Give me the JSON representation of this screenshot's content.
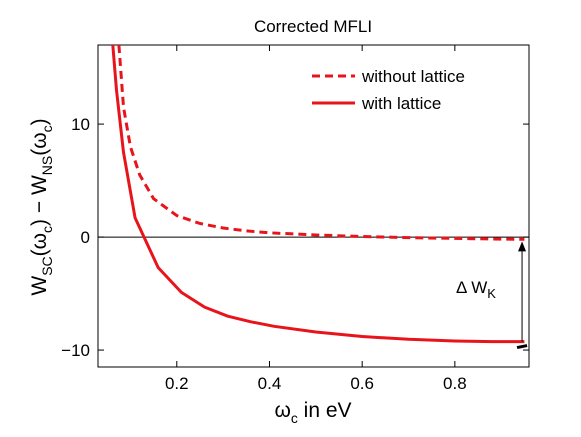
{
  "chart_data": {
    "type": "line",
    "title": "Corrected MFLI",
    "xlabel_parts": {
      "base": "ω",
      "sub": "c",
      "rest": " in eV"
    },
    "ylabel_parts": {
      "w1": "W",
      "s1": "SC",
      "a1": "(ω",
      "s2": "c",
      "a2": ") − W",
      "s3": "NS",
      "a3": "(ω",
      "s4": "c",
      "a4": ")"
    },
    "xlim": [
      0.03,
      0.96
    ],
    "ylim": [
      -11.5,
      17
    ],
    "xticks": [
      0.2,
      0.4,
      0.6,
      0.8
    ],
    "xtick_labels": [
      "0.2",
      "0.4",
      "0.6",
      "0.8"
    ],
    "yticks": [
      -10,
      0,
      10
    ],
    "ytick_labels": [
      "−10",
      "0",
      "10"
    ],
    "zero_line": true,
    "legend_position": "top-right",
    "series": [
      {
        "name": "without lattice",
        "style": "dashed",
        "color": "#e8141c",
        "x": [
          0.075,
          0.085,
          0.1,
          0.12,
          0.15,
          0.2,
          0.25,
          0.3,
          0.35,
          0.4,
          0.5,
          0.6,
          0.7,
          0.8,
          0.9,
          0.95
        ],
        "y": [
          17,
          11.5,
          8.0,
          5.5,
          3.4,
          1.9,
          1.2,
          0.8,
          0.55,
          0.38,
          0.18,
          0.05,
          -0.05,
          -0.12,
          -0.18,
          -0.2
        ]
      },
      {
        "name": "with lattice",
        "style": "solid",
        "color": "#e8141c",
        "x": [
          0.062,
          0.07,
          0.085,
          0.11,
          0.16,
          0.21,
          0.26,
          0.31,
          0.36,
          0.41,
          0.5,
          0.6,
          0.7,
          0.8,
          0.88,
          0.95
        ],
        "y": [
          17,
          13.0,
          7.5,
          1.7,
          -2.7,
          -4.9,
          -6.2,
          -7.0,
          -7.5,
          -7.9,
          -8.4,
          -8.8,
          -9.05,
          -9.2,
          -9.25,
          -9.25
        ]
      }
    ],
    "annotation": {
      "label_base": "Δ W",
      "label_sub": "K",
      "x": 0.945,
      "y_from": -9.25,
      "y_to": -0.2
    }
  }
}
